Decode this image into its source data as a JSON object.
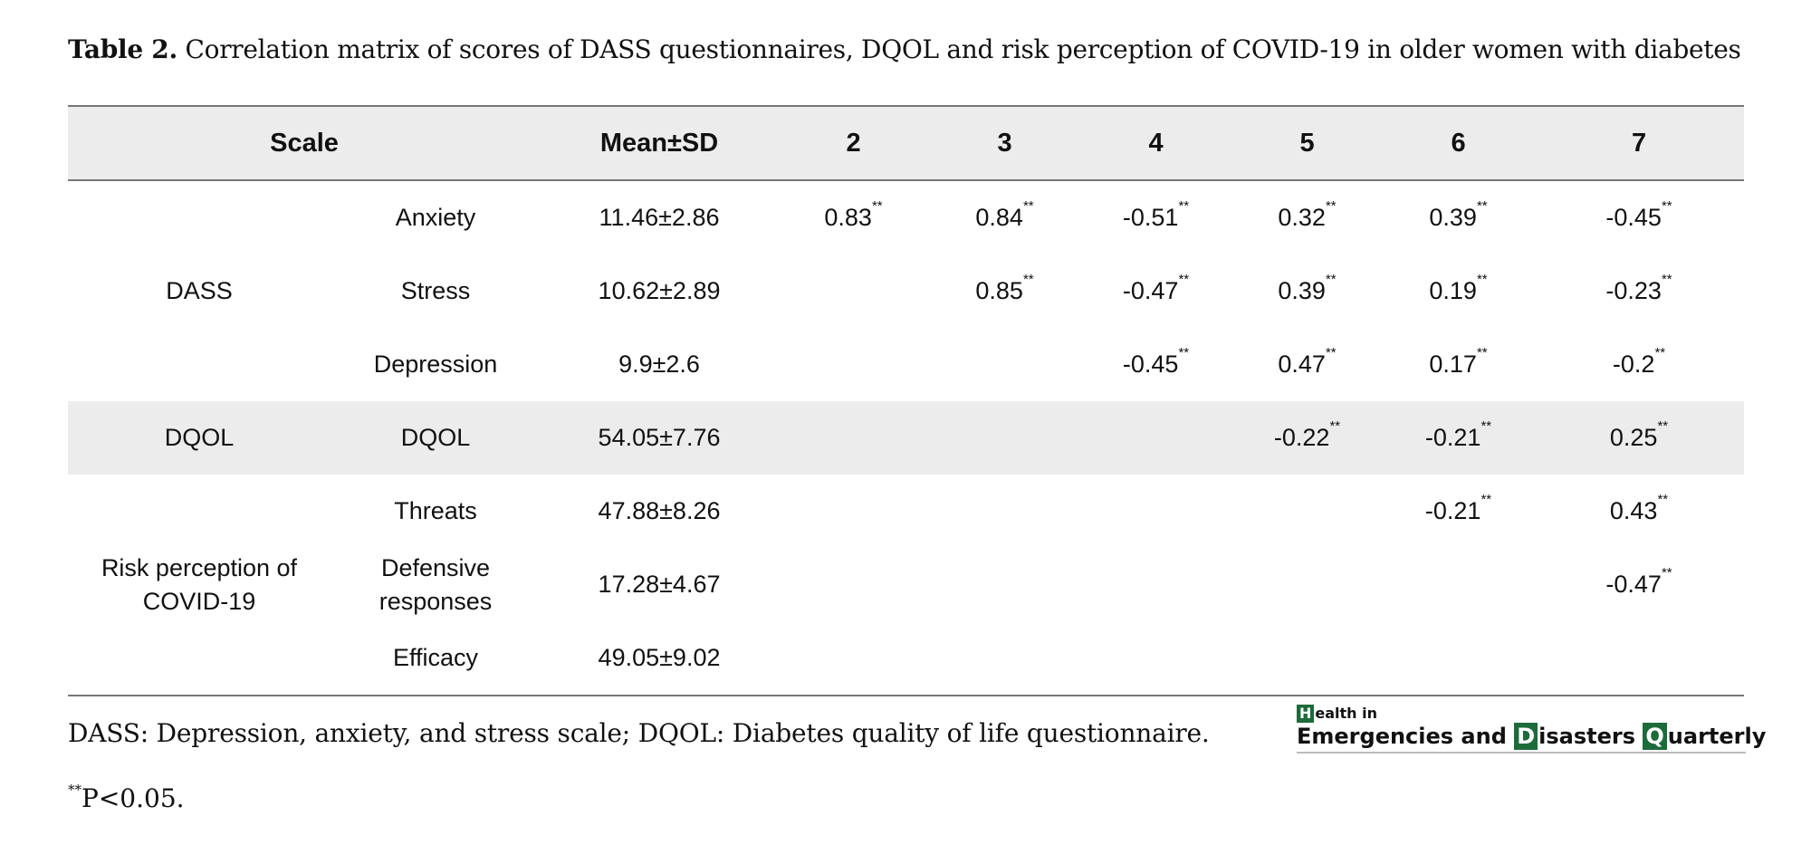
{
  "caption": {
    "label": "Table 2.",
    "text": "Correlation matrix of scores of DASS questionnaires, DQOL and risk perception of COVID-19 in older women with diabetes"
  },
  "table": {
    "headers": [
      "Scale",
      "Mean±SD",
      "2",
      "3",
      "4",
      "5",
      "6",
      "7"
    ],
    "groups": {
      "dass": "DASS",
      "dqol": "DQOL",
      "risk": "Risk perception of COVID-19"
    },
    "significance_mark": "**",
    "rows": [
      {
        "scale": "Anxiety",
        "mean_sd": "11.46±2.86",
        "c2": "0.83",
        "c3": "0.84",
        "c4": "-0.51",
        "c5": "0.32",
        "c6": "0.39",
        "c7": "-0.45"
      },
      {
        "scale": "Stress",
        "mean_sd": "10.62±2.89",
        "c2": "",
        "c3": "0.85",
        "c4": "-0.47",
        "c5": "0.39",
        "c6": "0.19",
        "c7": "-0.23"
      },
      {
        "scale": "Depression",
        "mean_sd": "9.9±2.6",
        "c2": "",
        "c3": "",
        "c4": "-0.45",
        "c5": "0.47",
        "c6": "0.17",
        "c7": "-0.2"
      },
      {
        "scale": "DQOL",
        "mean_sd": "54.05±7.76",
        "c2": "",
        "c3": "",
        "c4": "",
        "c5": "-0.22",
        "c6": "-0.21",
        "c7": "0.25"
      },
      {
        "scale": "Threats",
        "mean_sd": "47.88±8.26",
        "c2": "",
        "c3": "",
        "c4": "",
        "c5": "",
        "c6": "-0.21",
        "c7": "0.43"
      },
      {
        "scale": "Defensive responses",
        "mean_sd": "17.28±4.67",
        "c2": "",
        "c3": "",
        "c4": "",
        "c5": "",
        "c6": "",
        "c7": "-0.47"
      },
      {
        "scale": "Efficacy",
        "mean_sd": "49.05±9.02",
        "c2": "",
        "c3": "",
        "c4": "",
        "c5": "",
        "c6": "",
        "c7": ""
      }
    ]
  },
  "footnotes": {
    "abbreviations": "DASS: Depression, anxiety, and stress scale; DQOL: Diabetes quality of life questionnaire.",
    "p_mark": "**",
    "p_text": "P<0.05."
  },
  "logo": {
    "line1_initial": "H",
    "line1_rest": "ealth in",
    "line2_word1": "Emergencies and ",
    "line2_initial2": "D",
    "line2_word2": "isasters ",
    "line2_initial3": "Q",
    "line2_word3": "uarterly"
  }
}
